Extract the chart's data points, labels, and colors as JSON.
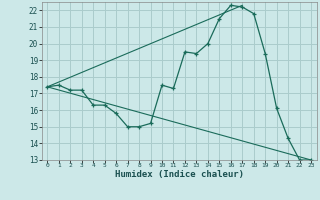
{
  "xlabel": "Humidex (Indice chaleur)",
  "bg_color": "#cce8e8",
  "grid_color": "#aacccc",
  "line_color": "#1a6b5a",
  "xlim": [
    -0.5,
    23.5
  ],
  "ylim": [
    13,
    22.5
  ],
  "xticks": [
    0,
    1,
    2,
    3,
    4,
    5,
    6,
    7,
    8,
    9,
    10,
    11,
    12,
    13,
    14,
    15,
    16,
    17,
    18,
    19,
    20,
    21,
    22,
    23
  ],
  "yticks": [
    13,
    14,
    15,
    16,
    17,
    18,
    19,
    20,
    21,
    22
  ],
  "line1_x": [
    0,
    1,
    2,
    3,
    4,
    5,
    6,
    7,
    8,
    9,
    10,
    11,
    12,
    13,
    14,
    15,
    16,
    17,
    18,
    19,
    20,
    21,
    22,
    23
  ],
  "line1_y": [
    17.4,
    17.5,
    17.2,
    17.2,
    16.3,
    16.3,
    15.8,
    15.0,
    15.0,
    15.2,
    17.5,
    17.3,
    19.5,
    19.4,
    20.0,
    21.5,
    22.3,
    22.2,
    21.8,
    19.4,
    16.1,
    14.3,
    13.0,
    13.0
  ],
  "line2_x": [
    0,
    23
  ],
  "line2_y": [
    17.4,
    13.0
  ],
  "line3_x": [
    0,
    17
  ],
  "line3_y": [
    17.4,
    22.3
  ]
}
